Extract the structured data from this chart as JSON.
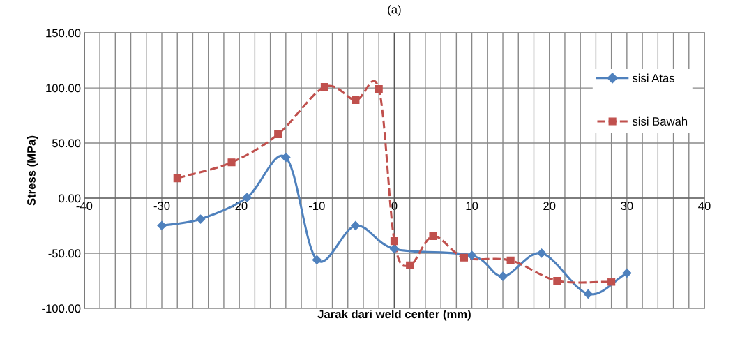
{
  "chart_data": {
    "type": "line",
    "title": "(a)",
    "xlabel": "Jarak dari weld center (mm)",
    "ylabel": "Stress (MPa)",
    "series": [
      {
        "name": "sisi Atas",
        "color": "#4f81bd",
        "marker": "diamond",
        "line_style": "solid",
        "x": [
          -30,
          -25,
          -19,
          -14,
          -10,
          -5,
          0,
          10,
          14,
          19,
          25,
          30
        ],
        "values": [
          -25,
          -19,
          0.6,
          37,
          -56,
          -25,
          -46,
          -52,
          -71,
          -50,
          -87,
          -68
        ]
      },
      {
        "name": "sisi Bawah",
        "color": "#c0504d",
        "marker": "square",
        "line_style": "dashed",
        "x": [
          -28,
          -21,
          -15,
          -9,
          -5,
          -2,
          0,
          2,
          5,
          9,
          15,
          21,
          28
        ],
        "values": [
          18,
          32.5,
          58,
          101,
          89,
          99,
          -39,
          -61,
          -34.5,
          -54,
          -56.5,
          -75,
          -76
        ]
      }
    ],
    "xlim": [
      -40,
      40
    ],
    "xticks": [
      -40,
      {
        "value": -38,
        "label": null
      },
      {
        "value": -36,
        "label": null
      },
      {
        "value": -34,
        "label": null
      },
      {
        "value": -32,
        "label": null
      },
      -30,
      {
        "value": -28,
        "label": null
      },
      {
        "value": -26,
        "label": null
      },
      {
        "value": -24,
        "label": null
      },
      {
        "value": -22,
        "label": null
      },
      -20,
      {
        "value": -18,
        "label": null
      },
      {
        "value": -16,
        "label": null
      },
      {
        "value": -14,
        "label": null
      },
      {
        "value": -12,
        "label": null
      },
      -10,
      {
        "value": -8,
        "label": null
      },
      {
        "value": -6,
        "label": null
      },
      {
        "value": -4,
        "label": null
      },
      {
        "value": -2,
        "label": null
      },
      0,
      {
        "value": 2,
        "label": null
      },
      {
        "value": 4,
        "label": null
      },
      {
        "value": 6,
        "label": null
      },
      {
        "value": 8,
        "label": null
      },
      10,
      {
        "value": 12,
        "label": null
      },
      {
        "value": 14,
        "label": null
      },
      {
        "value": 16,
        "label": null
      },
      {
        "value": 18,
        "label": null
      },
      20,
      {
        "value": 22,
        "label": null
      },
      {
        "value": 24,
        "label": null
      },
      {
        "value": 26,
        "label": null
      },
      {
        "value": 28,
        "label": null
      },
      30,
      {
        "value": 32,
        "label": null
      },
      {
        "value": 34,
        "label": null
      },
      {
        "value": 36,
        "label": null
      },
      {
        "value": 38,
        "label": null
      },
      40
    ],
    "ylim": [
      -100,
      150
    ],
    "yticks": [
      {
        "value": -100,
        "label": "-100.00"
      },
      {
        "value": -50,
        "label": "-50.00"
      },
      {
        "value": 0,
        "label": "0.00"
      },
      {
        "value": 50,
        "label": "50.00"
      },
      {
        "value": 100,
        "label": "100.00"
      },
      {
        "value": 150,
        "label": "150.00"
      }
    ],
    "grid": true,
    "legend": "top right"
  }
}
